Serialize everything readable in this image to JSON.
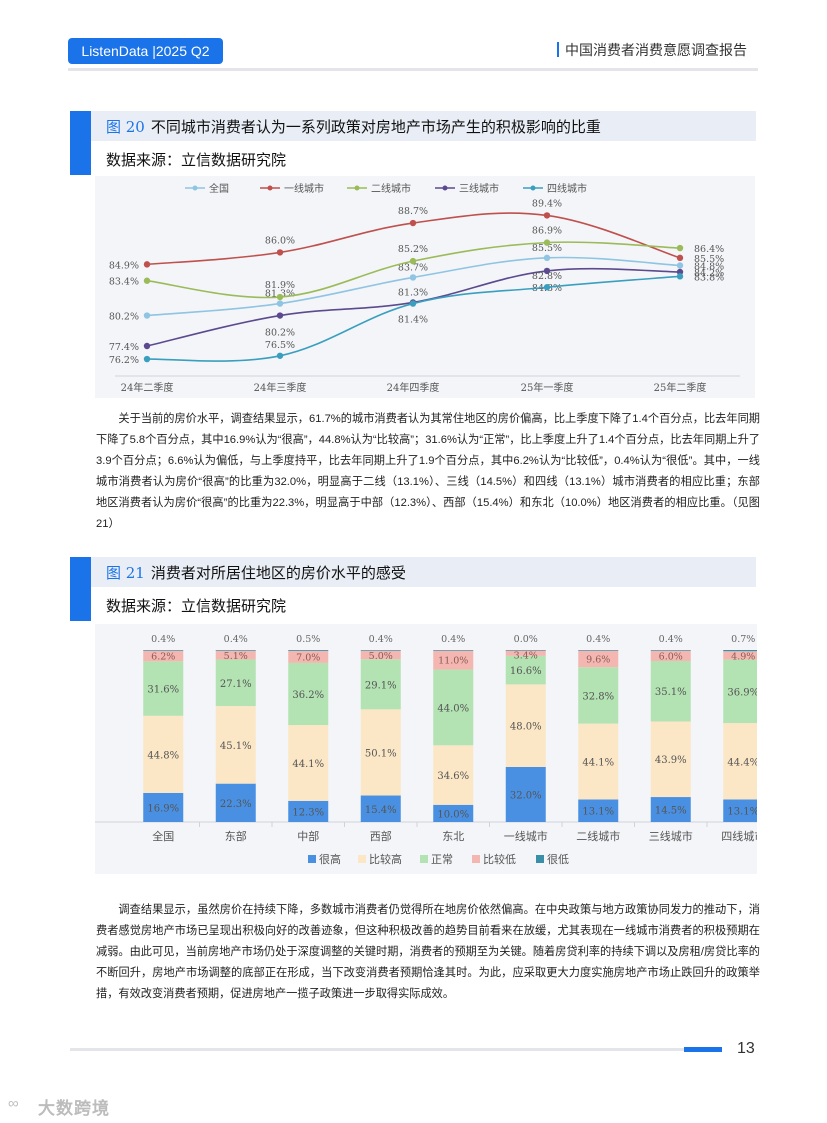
{
  "header": {
    "badge": "ListenData |2025 Q2",
    "report_title": "中国消费者消费意愿调查报告"
  },
  "figure20": {
    "number": "图 20",
    "title": "不同城市消费者认为一系列政策对房地产市场产生的积极影响的比重",
    "source": "数据来源：立信数据研究院"
  },
  "chart_data": [
    {
      "type": "line",
      "categories": [
        "24年二季度",
        "24年三季度",
        "24年四季度",
        "25年一季度",
        "25年二季度"
      ],
      "series": [
        {
          "name": "全国",
          "color": "#8fc4e3",
          "values": [
            80.2,
            81.3,
            83.7,
            85.5,
            84.8
          ],
          "labels": [
            "80.2%",
            "81.3%",
            "83.7%",
            "85.5%",
            "84.8%"
          ]
        },
        {
          "name": "一线城市",
          "color": "#c0504d",
          "values": [
            84.9,
            86.0,
            88.7,
            89.4,
            85.5
          ],
          "labels": [
            "84.9%",
            "86.0%",
            "88.7%",
            "89.4%",
            "85.5%"
          ]
        },
        {
          "name": "二线城市",
          "color": "#9bbb59",
          "values": [
            83.4,
            81.9,
            85.2,
            86.9,
            86.4
          ],
          "labels": [
            "83.4%",
            "81.9%",
            "85.2%",
            "86.9%",
            "86.4%"
          ]
        },
        {
          "name": "三线城市",
          "color": "#5c4a8f",
          "values": [
            77.4,
            80.2,
            81.4,
            84.3,
            84.2
          ],
          "labels": [
            "77.4%",
            "80.2%",
            "81.4%",
            "84.3%",
            "84.2%"
          ]
        },
        {
          "name": "四线城市",
          "color": "#3a9fbf",
          "values": [
            76.2,
            76.5,
            81.3,
            82.8,
            83.8
          ],
          "labels": [
            "76.2%",
            "76.5%",
            "81.3%",
            "82.8%",
            "83.8%"
          ]
        }
      ],
      "ylim": [
        74,
        91
      ]
    },
    {
      "type": "bar",
      "stacked": true,
      "categories": [
        "全国",
        "东部",
        "中部",
        "西部",
        "东北",
        "一线城市",
        "二线城市",
        "三线城市",
        "四线城市"
      ],
      "series": [
        {
          "name": "很高",
          "color": "#4a90e2",
          "values": [
            16.9,
            22.3,
            12.3,
            15.4,
            10.0,
            32.0,
            13.1,
            14.5,
            13.1
          ],
          "labels": [
            "16.9%",
            "22.3%",
            "12.3%",
            "15.4%",
            "10.0%",
            "32.0%",
            "13.1%",
            "14.5%",
            "13.1%"
          ]
        },
        {
          "name": "比较高",
          "color": "#fbe7c6",
          "values": [
            44.8,
            45.1,
            44.1,
            50.1,
            34.6,
            48.0,
            44.1,
            43.9,
            44.4
          ],
          "labels": [
            "44.8%",
            "45.1%",
            "44.1%",
            "50.1%",
            "34.6%",
            "48.0%",
            "44.1%",
            "43.9%",
            "44.4%"
          ]
        },
        {
          "name": "正常",
          "color": "#b3e2b3",
          "values": [
            31.6,
            27.1,
            36.2,
            29.1,
            44.0,
            16.6,
            32.8,
            35.1,
            36.9
          ],
          "labels": [
            "31.6%",
            "27.1%",
            "36.2%",
            "29.1%",
            "44.0%",
            "16.6%",
            "32.8%",
            "35.1%",
            "36.9%"
          ]
        },
        {
          "name": "比较低",
          "color": "#f4b6b0",
          "values": [
            6.2,
            5.1,
            7.0,
            5.0,
            11.0,
            3.4,
            9.6,
            6.0,
            4.9
          ],
          "labels": [
            "6.2%",
            "5.1%",
            "7.0%",
            "5.0%",
            "11.0%",
            "3.4%",
            "9.6%",
            "6.0%",
            "4.9%"
          ]
        },
        {
          "name": "很低",
          "color": "#3a8fa8",
          "values": [
            0.4,
            0.4,
            0.5,
            0.4,
            0.4,
            0.0,
            0.4,
            0.4,
            0.7
          ],
          "labels": [
            "0.4%",
            "0.4%",
            "0.5%",
            "0.4%",
            "0.4%",
            "0.0%",
            "0.4%",
            "0.4%",
            "0.7%"
          ]
        }
      ]
    }
  ],
  "paragraph1": "关于当前的房价水平，调查结果显示，61.7%的城市消费者认为其常住地区的房价偏高，比上季度下降了1.4个百分点，比去年同期下降了5.8个百分点，其中16.9%认为“很高”，44.8%认为“比较高”；31.6%认为“正常”，比上季度上升了1.4个百分点，比去年同期上升了3.9个百分点；6.6%认为偏低，与上季度持平，比去年同期上升了1.9个百分点，其中6.2%认为“比较低”，0.4%认为“很低”。其中，一线城市消费者认为房价“很高”的比重为32.0%，明显高于二线（13.1%）、三线（14.5%）和四线（13.1%）城市消费者的相应比重；东部地区消费者认为房价“很高”的比重为22.3%，明显高于中部（12.3%）、西部（15.4%）和东北（10.0%）地区消费者的相应比重。（见图21）",
  "figure21": {
    "number": "图 21",
    "title": "消费者对所居住地区的房价水平的感受",
    "source": "数据来源：立信数据研究院"
  },
  "paragraph2": "调查结果显示，虽然房价在持续下降，多数城市消费者仍觉得所在地房价依然偏高。在中央政策与地方政策协同发力的推动下，消费者感觉房地产市场已呈现出积极向好的改善迹象，但这种积极改善的趋势目前看来在放缓，尤其表现在一线城市消费者的积极预期在减弱。由此可见，当前房地产市场仍处于深度调整的关键时期，消费者的预期至为关键。随着房贷利率的持续下调以及房租/房贷比率的不断回升，房地产市场调整的底部正在形成，当下改变消费者预期恰逢其时。为此，应采取更大力度实施房地产市场止跌回升的政策举措，有效改变消费者预期，促进房地产一揽子政策进一步取得实际成效。",
  "footer": {
    "page_number": "13",
    "watermark_icon": "∞",
    "watermark_text": "大数跨境"
  }
}
